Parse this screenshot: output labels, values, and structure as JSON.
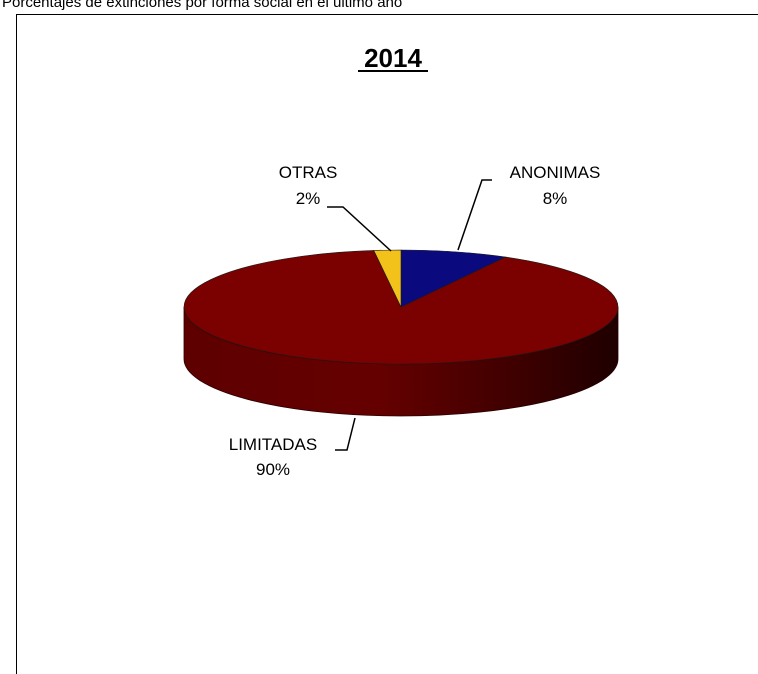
{
  "header": {
    "caption": "Porcentajes de extinciones por forma social en el último año"
  },
  "chart_data": {
    "type": "pie",
    "title": "2014",
    "slices": [
      {
        "label": "ANONIMAS",
        "value": 8,
        "value_label": "8%",
        "color": "#0a0a7e"
      },
      {
        "label": "LIMITADAS",
        "value": 90,
        "value_label": "90%",
        "color": "#7b0000"
      },
      {
        "label": "OTRAS",
        "value": 2,
        "value_label": "2%",
        "color": "#f2c21b"
      }
    ],
    "style": "3d"
  }
}
